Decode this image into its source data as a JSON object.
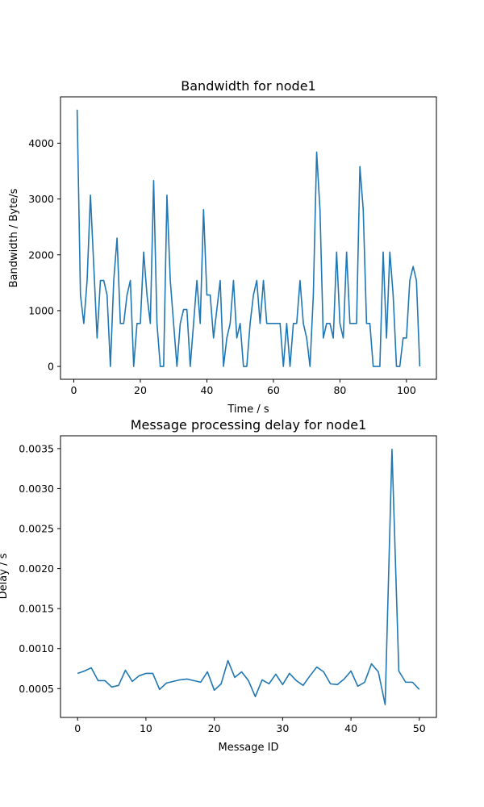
{
  "chart_data": [
    {
      "type": "line",
      "title": "Bandwidth for node1",
      "xlabel": "Time / s",
      "ylabel": "Bandwidth / Byte/s",
      "xlim": [
        -4,
        109
      ],
      "ylim": [
        -230,
        4830
      ],
      "xticks": [
        0,
        20,
        40,
        60,
        80,
        100
      ],
      "yticks": [
        0,
        1000,
        2000,
        3000,
        4000
      ],
      "color": "#1f77b4",
      "x": [
        1,
        2,
        3,
        4,
        5,
        6,
        7,
        8,
        9,
        10,
        11,
        12,
        13,
        14,
        15,
        16,
        17,
        18,
        19,
        20,
        21,
        22,
        23,
        24,
        25,
        26,
        27,
        28,
        29,
        30,
        31,
        32,
        33,
        34,
        35,
        36,
        37,
        38,
        39,
        40,
        41,
        42,
        43,
        44,
        45,
        46,
        47,
        48,
        49,
        50,
        51,
        52,
        53,
        54,
        55,
        56,
        57,
        58,
        59,
        60,
        61,
        62,
        63,
        64,
        65,
        66,
        67,
        68,
        69,
        70,
        71,
        72,
        73,
        74,
        75,
        76,
        77,
        78,
        79,
        80,
        81,
        82,
        83,
        84,
        85,
        86,
        87,
        88,
        89,
        90,
        91,
        92,
        93,
        94,
        95,
        96,
        97,
        98,
        99,
        100,
        101,
        102,
        103,
        104
      ],
      "y": [
        4600,
        1280,
        770,
        1540,
        3070,
        1800,
        510,
        1540,
        1540,
        1280,
        0,
        1540,
        2300,
        770,
        770,
        1280,
        1540,
        0,
        770,
        770,
        2050,
        1280,
        770,
        3330,
        770,
        0,
        0,
        3070,
        1540,
        770,
        0,
        770,
        1020,
        1020,
        0,
        770,
        1540,
        770,
        2810,
        1280,
        1280,
        510,
        1020,
        1540,
        0,
        510,
        770,
        1540,
        510,
        770,
        0,
        0,
        770,
        1280,
        1540,
        770,
        1540,
        770,
        770,
        770,
        770,
        770,
        0,
        770,
        0,
        770,
        770,
        1540,
        770,
        510,
        0,
        1280,
        3840,
        2810,
        510,
        770,
        770,
        510,
        2050,
        770,
        510,
        2050,
        770,
        770,
        770,
        3580,
        2810,
        770,
        770,
        0,
        0,
        0,
        2050,
        510,
        2050,
        1280,
        0,
        0,
        510,
        510,
        1540,
        1790,
        1540,
        0
      ]
    },
    {
      "type": "line",
      "title": "Message processing delay for node1",
      "xlabel": "Message ID",
      "ylabel": "Delay / s",
      "xlim": [
        -2.5,
        52.5
      ],
      "ylim": [
        0.00014,
        0.00366
      ],
      "xticks": [
        0,
        10,
        20,
        30,
        40,
        50
      ],
      "yticks": [
        0.0005,
        0.001,
        0.0015,
        0.002,
        0.0025,
        0.003,
        0.0035
      ],
      "yticklabels": [
        "0.0005",
        "0.0010",
        "0.0015",
        "0.0020",
        "0.0025",
        "0.0030",
        "0.0035"
      ],
      "color": "#1f77b4",
      "x": [
        0,
        1,
        2,
        3,
        4,
        5,
        6,
        7,
        8,
        9,
        10,
        11,
        12,
        13,
        14,
        15,
        16,
        17,
        18,
        19,
        20,
        21,
        22,
        23,
        24,
        25,
        26,
        27,
        28,
        29,
        30,
        31,
        32,
        33,
        34,
        35,
        36,
        37,
        38,
        39,
        40,
        41,
        42,
        43,
        44,
        45,
        46,
        47,
        48,
        49,
        50
      ],
      "y": [
        0.00069,
        0.00072,
        0.00076,
        0.0006,
        0.0006,
        0.00052,
        0.00054,
        0.00073,
        0.00059,
        0.00066,
        0.00069,
        0.00069,
        0.00049,
        0.00057,
        0.00059,
        0.00061,
        0.00062,
        0.0006,
        0.00058,
        0.00071,
        0.00048,
        0.00056,
        0.00085,
        0.00064,
        0.00071,
        0.0006,
        0.0004,
        0.00061,
        0.00056,
        0.00068,
        0.00055,
        0.00069,
        0.0006,
        0.00054,
        0.00066,
        0.00077,
        0.00071,
        0.00056,
        0.00055,
        0.00062,
        0.00072,
        0.00053,
        0.00058,
        0.00081,
        0.00071,
        0.0003,
        0.00349,
        0.00072,
        0.00058,
        0.00058,
        0.00049
      ]
    }
  ]
}
